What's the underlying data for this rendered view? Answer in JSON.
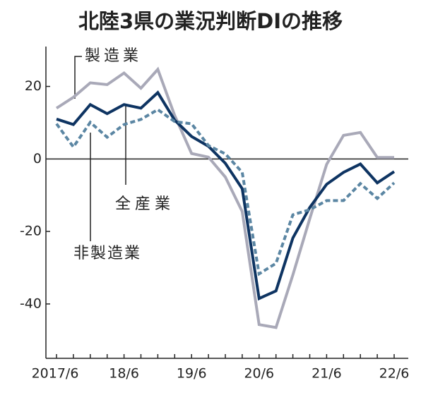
{
  "chart_data": {
    "type": "line",
    "title": "北陸3県の業況判断DIの推移",
    "categories": [
      "2017/6",
      null,
      null,
      null,
      "18/6",
      null,
      null,
      null,
      "19/6",
      null,
      null,
      null,
      "20/6",
      null,
      null,
      null,
      "21/6",
      null,
      null,
      null,
      "22/6"
    ],
    "series": [
      {
        "name": "製造業",
        "color": "#a9a9b8",
        "dashed": false,
        "values": [
          14,
          17,
          21,
          20.5,
          23.7,
          19.5,
          24.7,
          12,
          1.5,
          0.5,
          -5,
          -14.5,
          -45.7,
          -46.5,
          -32,
          -16.5,
          -1.5,
          6.5,
          7.3,
          0.4,
          0.4
        ]
      },
      {
        "name": "全産業",
        "color": "#0e3462",
        "dashed": false,
        "values": [
          11,
          9.5,
          15,
          12.5,
          15,
          14,
          18.3,
          10.7,
          6.2,
          3.5,
          -1.2,
          -8.2,
          -38.5,
          -36.4,
          -21.8,
          -13.4,
          -7,
          -3.7,
          -1.4,
          -6.6,
          -3.5
        ]
      },
      {
        "name": "非製造業",
        "color": "#5b86a3",
        "dashed": true,
        "values": [
          9.7,
          3.3,
          10.1,
          6,
          9.5,
          10.9,
          13.6,
          10.3,
          9.7,
          3.7,
          1.4,
          -3.7,
          -31.7,
          -28.8,
          -15.4,
          -14,
          -11.5,
          -11.5,
          -6.8,
          -10.9,
          -6.6
        ]
      }
    ],
    "ylim": [
      -55,
      31
    ],
    "yticks": [
      20,
      0,
      -20,
      -40
    ]
  }
}
